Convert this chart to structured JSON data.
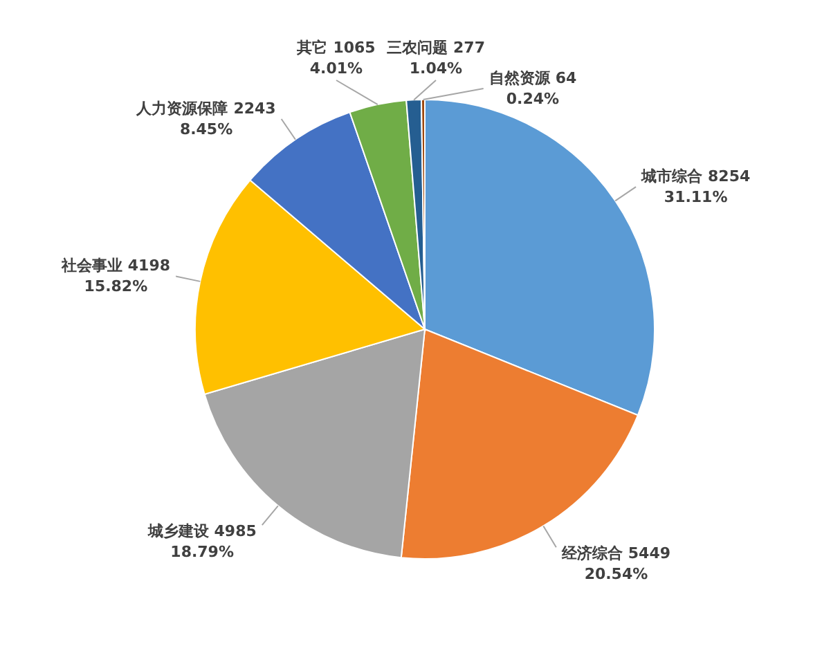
{
  "chart_data": {
    "type": "pie",
    "categories": [
      "城市综合",
      "经济综合",
      "城乡建设",
      "社会事业",
      "人力资源保障",
      "其它",
      "三农问题",
      "自然资源"
    ],
    "values": [
      8254,
      5449,
      4985,
      4198,
      2243,
      1065,
      277,
      64
    ],
    "value_labels": [
      "8254 31.11%",
      "5449 20.54%",
      "4985 18.79%",
      "4198 15.82%",
      "2243 8.45%",
      "1065 4.01%",
      "277 1.04%",
      "64 0.24%"
    ],
    "colors": [
      "#5b9bd5",
      "#ed7d31",
      "#a5a5a5",
      "#ffc000",
      "#4472c4",
      "#70ad47",
      "#255e91",
      "#9e480e"
    ],
    "legend": false
  }
}
